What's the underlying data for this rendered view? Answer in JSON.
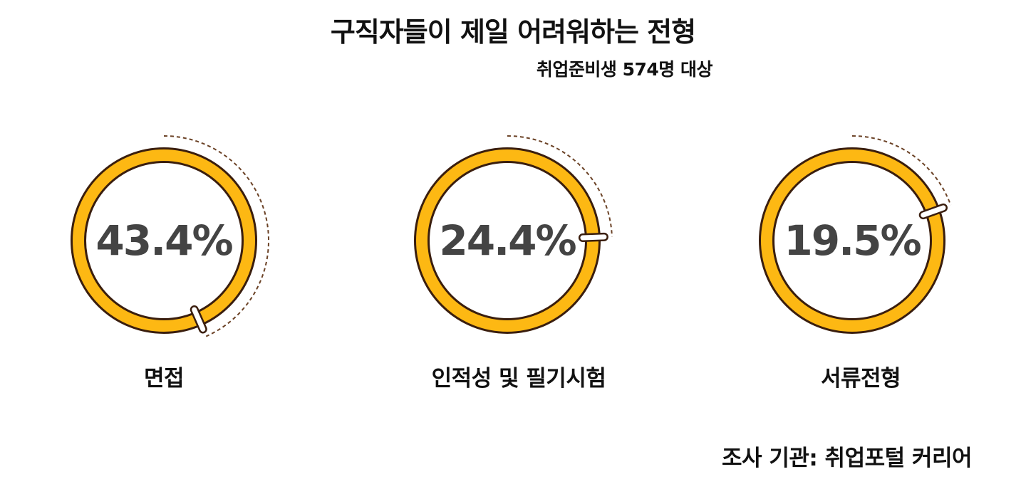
{
  "title": "구직자들이 제일 어려워하는 전형",
  "subtitle": "취업준비생 574명 대상",
  "source": "조사 기관: 취업포털 커리어",
  "colors": {
    "ring": "#FDB813",
    "outline": "#3A1E0E",
    "dash": "#6B4226",
    "text": "#444444"
  },
  "chart_data": {
    "type": "pie",
    "unit": "%",
    "categories": [
      "면접",
      "인적성 및 필기시험",
      "서류전형"
    ],
    "values": [
      43.4,
      24.4,
      19.5
    ],
    "value_labels": [
      "43.4%",
      "24.4%",
      "19.5%"
    ]
  }
}
